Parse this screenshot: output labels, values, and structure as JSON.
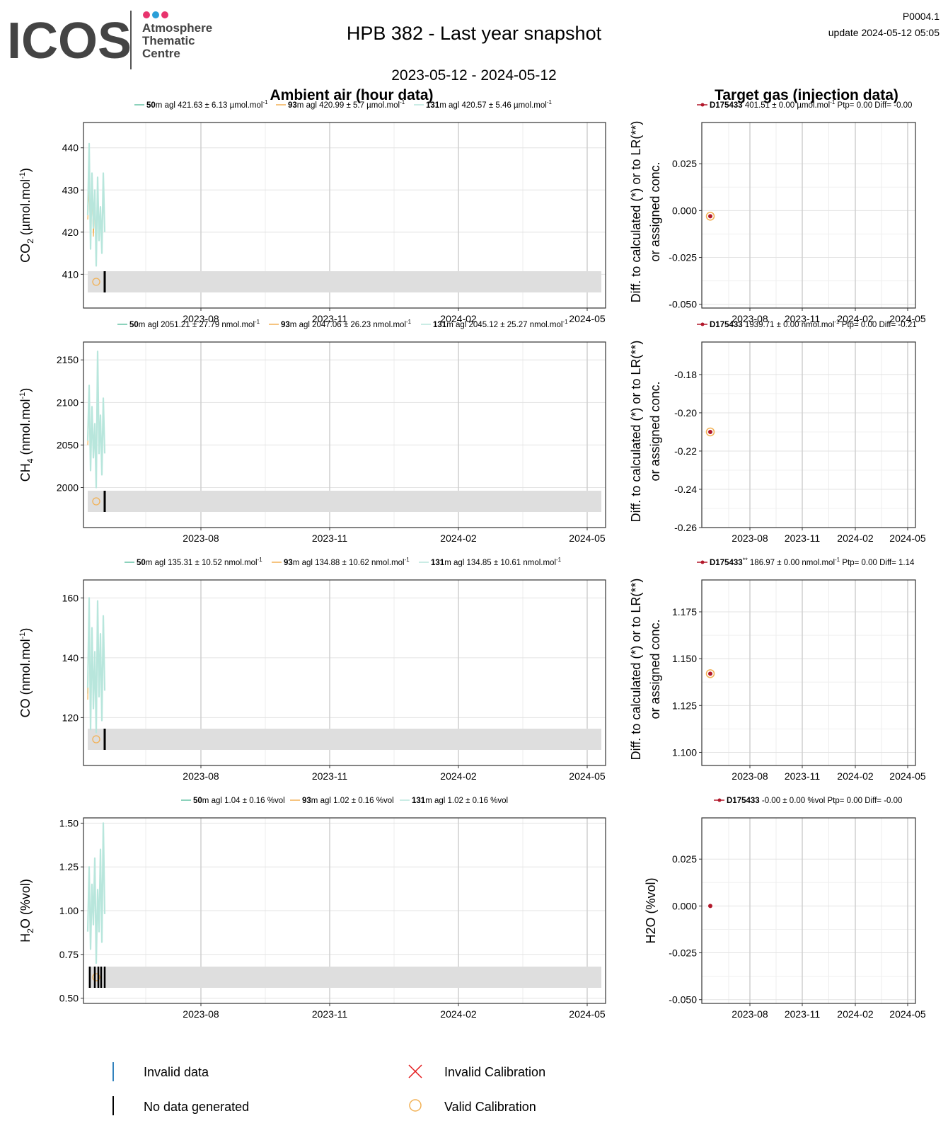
{
  "header": {
    "logo_text": "ICOS",
    "logo_sub": [
      "Atmosphere",
      "Thematic",
      "Centre"
    ],
    "logo_dot_colors": [
      "#e8336d",
      "#2a9fd8",
      "#e8336d"
    ],
    "title": "HPB 382 - Last year snapshot",
    "date_range": "2023-05-12 - 2024-05-12",
    "code": "P0004.1",
    "update": "update  2024-05-12 05:05"
  },
  "sections": {
    "left_title": "Ambient air (hour data)",
    "right_title": "Target gas (injection data)"
  },
  "colors": {
    "agl50": "#66c2a5",
    "agl93": "#f2b155",
    "agl131": "#b8e6dc",
    "target_point": "#b2182b",
    "valid_calibration": "#f2b155",
    "invalid_calibration": "#e41a1c",
    "invalid_data": "#3182bd",
    "no_data": "#000000",
    "band": "#dedede"
  },
  "x_ticks": [
    "2023-08",
    "2023-11",
    "2024-02",
    "2024-05"
  ],
  "panels": [
    {
      "id": "co2",
      "ylabel_main": "CO",
      "ylabel_sub": "2",
      "ylabel_rest": " (µmol.mol",
      "ylabel_sup": "-1",
      "ylabel_end": ")",
      "legend": [
        {
          "height": "50",
          "text": "m agl 421.63 ± 6.13 µmol.mol",
          "sup": "-1"
        },
        {
          "height": "93",
          "text": "m agl 420.99 ± 5.7 µmol.mol",
          "sup": "-1"
        },
        {
          "height": "131",
          "text": "m agl 420.57 ± 5.46 µmol.mol",
          "sup": "-1"
        }
      ],
      "yticks": [
        "410",
        "420",
        "430",
        "440"
      ],
      "target": {
        "id": "D175433",
        "mark": "",
        "text": " 401.51 ± 0.00 µmol.mol",
        "sup": "-1",
        "tail": " Ptp= 0.00 Diff= -0.00",
        "yticks": [
          "-0.050",
          "-0.025",
          "0.000",
          "0.025"
        ],
        "ylabel1": "Diff. to calculated (*) or to LR(**)",
        "ylabel2": "or assigned conc."
      }
    },
    {
      "id": "ch4",
      "ylabel_main": "CH",
      "ylabel_sub": "4",
      "ylabel_rest": " (nmol.mol",
      "ylabel_sup": "-1",
      "ylabel_end": ")",
      "legend": [
        {
          "height": "50",
          "text": "m agl 2051.21 ± 27.79 nmol.mol",
          "sup": "-1"
        },
        {
          "height": "93",
          "text": "m agl 2047.06 ± 26.23 nmol.mol",
          "sup": "-1"
        },
        {
          "height": "131",
          "text": "m agl 2045.12 ± 25.27 nmol.mol",
          "sup": "-1"
        }
      ],
      "yticks": [
        "2000",
        "2050",
        "2100",
        "2150"
      ],
      "target": {
        "id": "D175433",
        "mark": "",
        "text": " 1939.71 ± 0.00 nmol.mol",
        "sup": "-1",
        "tail": " Ptp= 0.00 Diff= -0.21",
        "yticks": [
          "-0.26",
          "-0.24",
          "-0.22",
          "-0.20",
          "-0.18"
        ],
        "ylabel1": "Diff. to calculated (*) or to LR(**)",
        "ylabel2": "or assigned conc."
      }
    },
    {
      "id": "co",
      "ylabel_main": "CO",
      "ylabel_sub": "",
      "ylabel_rest": " (nmol.mol",
      "ylabel_sup": "-1",
      "ylabel_end": ")",
      "legend": [
        {
          "height": "50",
          "text": "m agl 135.31 ± 10.52 nmol.mol",
          "sup": "-1"
        },
        {
          "height": "93",
          "text": "m agl 134.88 ± 10.62 nmol.mol",
          "sup": "-1"
        },
        {
          "height": "131",
          "text": "m agl 134.85 ± 10.61 nmol.mol",
          "sup": "-1"
        }
      ],
      "yticks": [
        "120",
        "140",
        "160"
      ],
      "target": {
        "id": "D175433",
        "mark": "**",
        "text": " 186.97 ± 0.00 nmol.mol",
        "sup": "-1",
        "tail": " Ptp= 0.00 Diff= 1.14",
        "yticks": [
          "1.100",
          "1.125",
          "1.150",
          "1.175"
        ],
        "ylabel1": "Diff. to calculated (*) or to LR(**)",
        "ylabel2": "or assigned conc."
      }
    },
    {
      "id": "h2o",
      "ylabel_main": "H",
      "ylabel_sub": "2",
      "ylabel_rest": "O (%vol)",
      "ylabel_sup": "",
      "ylabel_end": "",
      "legend": [
        {
          "height": "50",
          "text": "m agl 1.04 ± 0.16 %vol",
          "sup": ""
        },
        {
          "height": "93",
          "text": "m agl 1.02 ± 0.16 %vol",
          "sup": ""
        },
        {
          "height": "131",
          "text": "m agl 1.02 ± 0.16 %vol",
          "sup": ""
        }
      ],
      "yticks": [
        "0.50",
        "0.75",
        "1.00",
        "1.25",
        "1.50"
      ],
      "target": {
        "id": "D175433",
        "mark": "",
        "text": " -0.00 ± 0.00 %vol",
        "sup": "",
        "tail": " Ptp= 0.00 Diff= -0.00",
        "yticks": [
          "-0.050",
          "-0.025",
          "0.000",
          "0.025"
        ],
        "ylabel1": "H2O (%vol)",
        "ylabel2": ""
      }
    }
  ],
  "legend_bottom": {
    "invalid_data": "Invalid data",
    "no_data": "No data generated",
    "invalid_calibration": "Invalid Calibration",
    "valid_calibration": "Valid Calibration"
  },
  "chart_data": [
    {
      "type": "line",
      "title": "Ambient air (hour data)",
      "ylabel": "CO2 (µmol.mol-1)",
      "x_ticks": [
        "2023-08",
        "2023-11",
        "2024-02",
        "2024-05"
      ],
      "ylim": [
        402,
        446
      ],
      "series_window": [
        "2023-05-12",
        "2023-06-05"
      ],
      "series": [
        {
          "name": "50m agl",
          "x_days": [
            0,
            2,
            4,
            6,
            8,
            10,
            12,
            14,
            16,
            18,
            20,
            22,
            24
          ],
          "values": [
            426,
            438,
            418,
            432,
            422,
            428,
            415,
            430,
            420,
            425,
            418,
            432,
            421
          ]
        },
        {
          "name": "93m agl",
          "x_days": [
            0,
            2,
            4,
            6,
            8,
            10,
            12,
            14,
            16,
            18,
            20,
            22,
            24
          ],
          "values": [
            423,
            430,
            420,
            429,
            419,
            426,
            417,
            425,
            422,
            424,
            419,
            428,
            421
          ]
        },
        {
          "name": "131m agl",
          "x_days": [
            0,
            2,
            4,
            6,
            8,
            10,
            12,
            14,
            16,
            18,
            20,
            22,
            24
          ],
          "values": [
            424,
            441,
            416,
            434,
            421,
            430,
            412,
            433,
            418,
            426,
            415,
            434,
            420
          ]
        }
      ]
    },
    {
      "type": "scatter",
      "title": "Target gas (injection data)",
      "ylabel": "Diff. to calculated (*) or to LR(**) or assigned conc.",
      "ylim": [
        -0.052,
        0.047
      ],
      "series": [
        {
          "name": "D175433",
          "x": [
            "2023-05-25"
          ],
          "values": [
            -0.003
          ]
        }
      ]
    },
    {
      "type": "line",
      "ylabel": "CH4 (nmol.mol-1)",
      "ylim": [
        1953,
        2171
      ],
      "series": [
        {
          "name": "50m agl",
          "x_days": [
            0,
            2,
            4,
            6,
            8,
            10,
            12,
            14,
            16,
            18,
            20,
            22,
            24
          ],
          "values": [
            2060,
            2110,
            2030,
            2090,
            2040,
            2070,
            2010,
            2130,
            2050,
            2080,
            2020,
            2100,
            2045
          ]
        },
        {
          "name": "93m agl",
          "x_days": [
            0,
            2,
            4,
            6,
            8,
            10,
            12,
            14,
            16,
            18,
            20,
            22,
            24
          ],
          "values": [
            2050,
            2090,
            2040,
            2080,
            2045,
            2060,
            2030,
            2150,
            2060,
            2070,
            2035,
            2095,
            2048
          ]
        },
        {
          "name": "131m agl",
          "x_days": [
            0,
            2,
            4,
            6,
            8,
            10,
            12,
            14,
            16,
            18,
            20,
            22,
            24
          ],
          "values": [
            2055,
            2120,
            2020,
            2095,
            2035,
            2075,
            2000,
            2160,
            2040,
            2085,
            2015,
            2105,
            2040
          ]
        }
      ]
    },
    {
      "type": "scatter",
      "ylim": [
        -0.26,
        -0.163
      ],
      "series": [
        {
          "name": "D175433",
          "x": [
            "2023-05-25"
          ],
          "values": [
            -0.21
          ]
        }
      ]
    },
    {
      "type": "line",
      "ylabel": "CO (nmol.mol-1)",
      "ylim": [
        104,
        166
      ],
      "series": [
        {
          "name": "50m agl",
          "x_days": [
            0,
            2,
            4,
            6,
            8,
            10,
            12,
            14,
            16,
            18,
            20,
            22,
            24
          ],
          "values": [
            128,
            155,
            118,
            148,
            125,
            140,
            116,
            158,
            130,
            146,
            120,
            152,
            131
          ]
        },
        {
          "name": "93m agl",
          "x_days": [
            0,
            2,
            4,
            6,
            8,
            10,
            12,
            14,
            16,
            18,
            20,
            22,
            24
          ],
          "values": [
            126,
            150,
            120,
            145,
            124,
            138,
            118,
            155,
            128,
            144,
            122,
            150,
            130
          ]
        },
        {
          "name": "131m agl",
          "x_days": [
            0,
            2,
            4,
            6,
            8,
            10,
            12,
            14,
            16,
            18,
            20,
            22,
            24
          ],
          "values": [
            130,
            160,
            116,
            150,
            123,
            142,
            115,
            159,
            127,
            148,
            119,
            154,
            129
          ]
        }
      ]
    },
    {
      "type": "scatter",
      "ylim": [
        1.093,
        1.192
      ],
      "series": [
        {
          "name": "D175433",
          "x": [
            "2023-05-25"
          ],
          "values": [
            1.142
          ]
        }
      ]
    },
    {
      "type": "line",
      "ylabel": "H2O (%vol)",
      "ylim": [
        0.47,
        1.53
      ],
      "series": [
        {
          "name": "50m agl",
          "x_days": [
            0,
            2,
            4,
            6,
            8,
            10,
            12,
            14,
            16,
            18,
            20,
            22,
            24
          ],
          "values": [
            0.9,
            1.2,
            0.8,
            1.1,
            0.95,
            1.25,
            0.75,
            1.1,
            0.9,
            1.3,
            0.85,
            1.45,
            1.0
          ]
        },
        {
          "name": "93m agl",
          "x_days": [
            0,
            2,
            4,
            6,
            8,
            10,
            12,
            14,
            16,
            18,
            20,
            22,
            24
          ],
          "values": [
            0.92,
            1.15,
            0.85,
            1.05,
            0.97,
            1.2,
            0.8,
            1.05,
            0.95,
            1.25,
            0.9,
            1.35,
            1.02
          ]
        },
        {
          "name": "131m agl",
          "x_days": [
            0,
            2,
            4,
            6,
            8,
            10,
            12,
            14,
            16,
            18,
            20,
            22,
            24
          ],
          "values": [
            0.88,
            1.25,
            0.78,
            1.15,
            0.92,
            1.3,
            0.7,
            1.12,
            0.88,
            1.35,
            0.82,
            1.5,
            0.98
          ]
        }
      ]
    },
    {
      "type": "scatter",
      "ylim": [
        -0.052,
        0.047
      ],
      "series": [
        {
          "name": "D175433",
          "x": [
            "2023-05-25"
          ],
          "values": [
            0.0
          ]
        }
      ]
    }
  ]
}
